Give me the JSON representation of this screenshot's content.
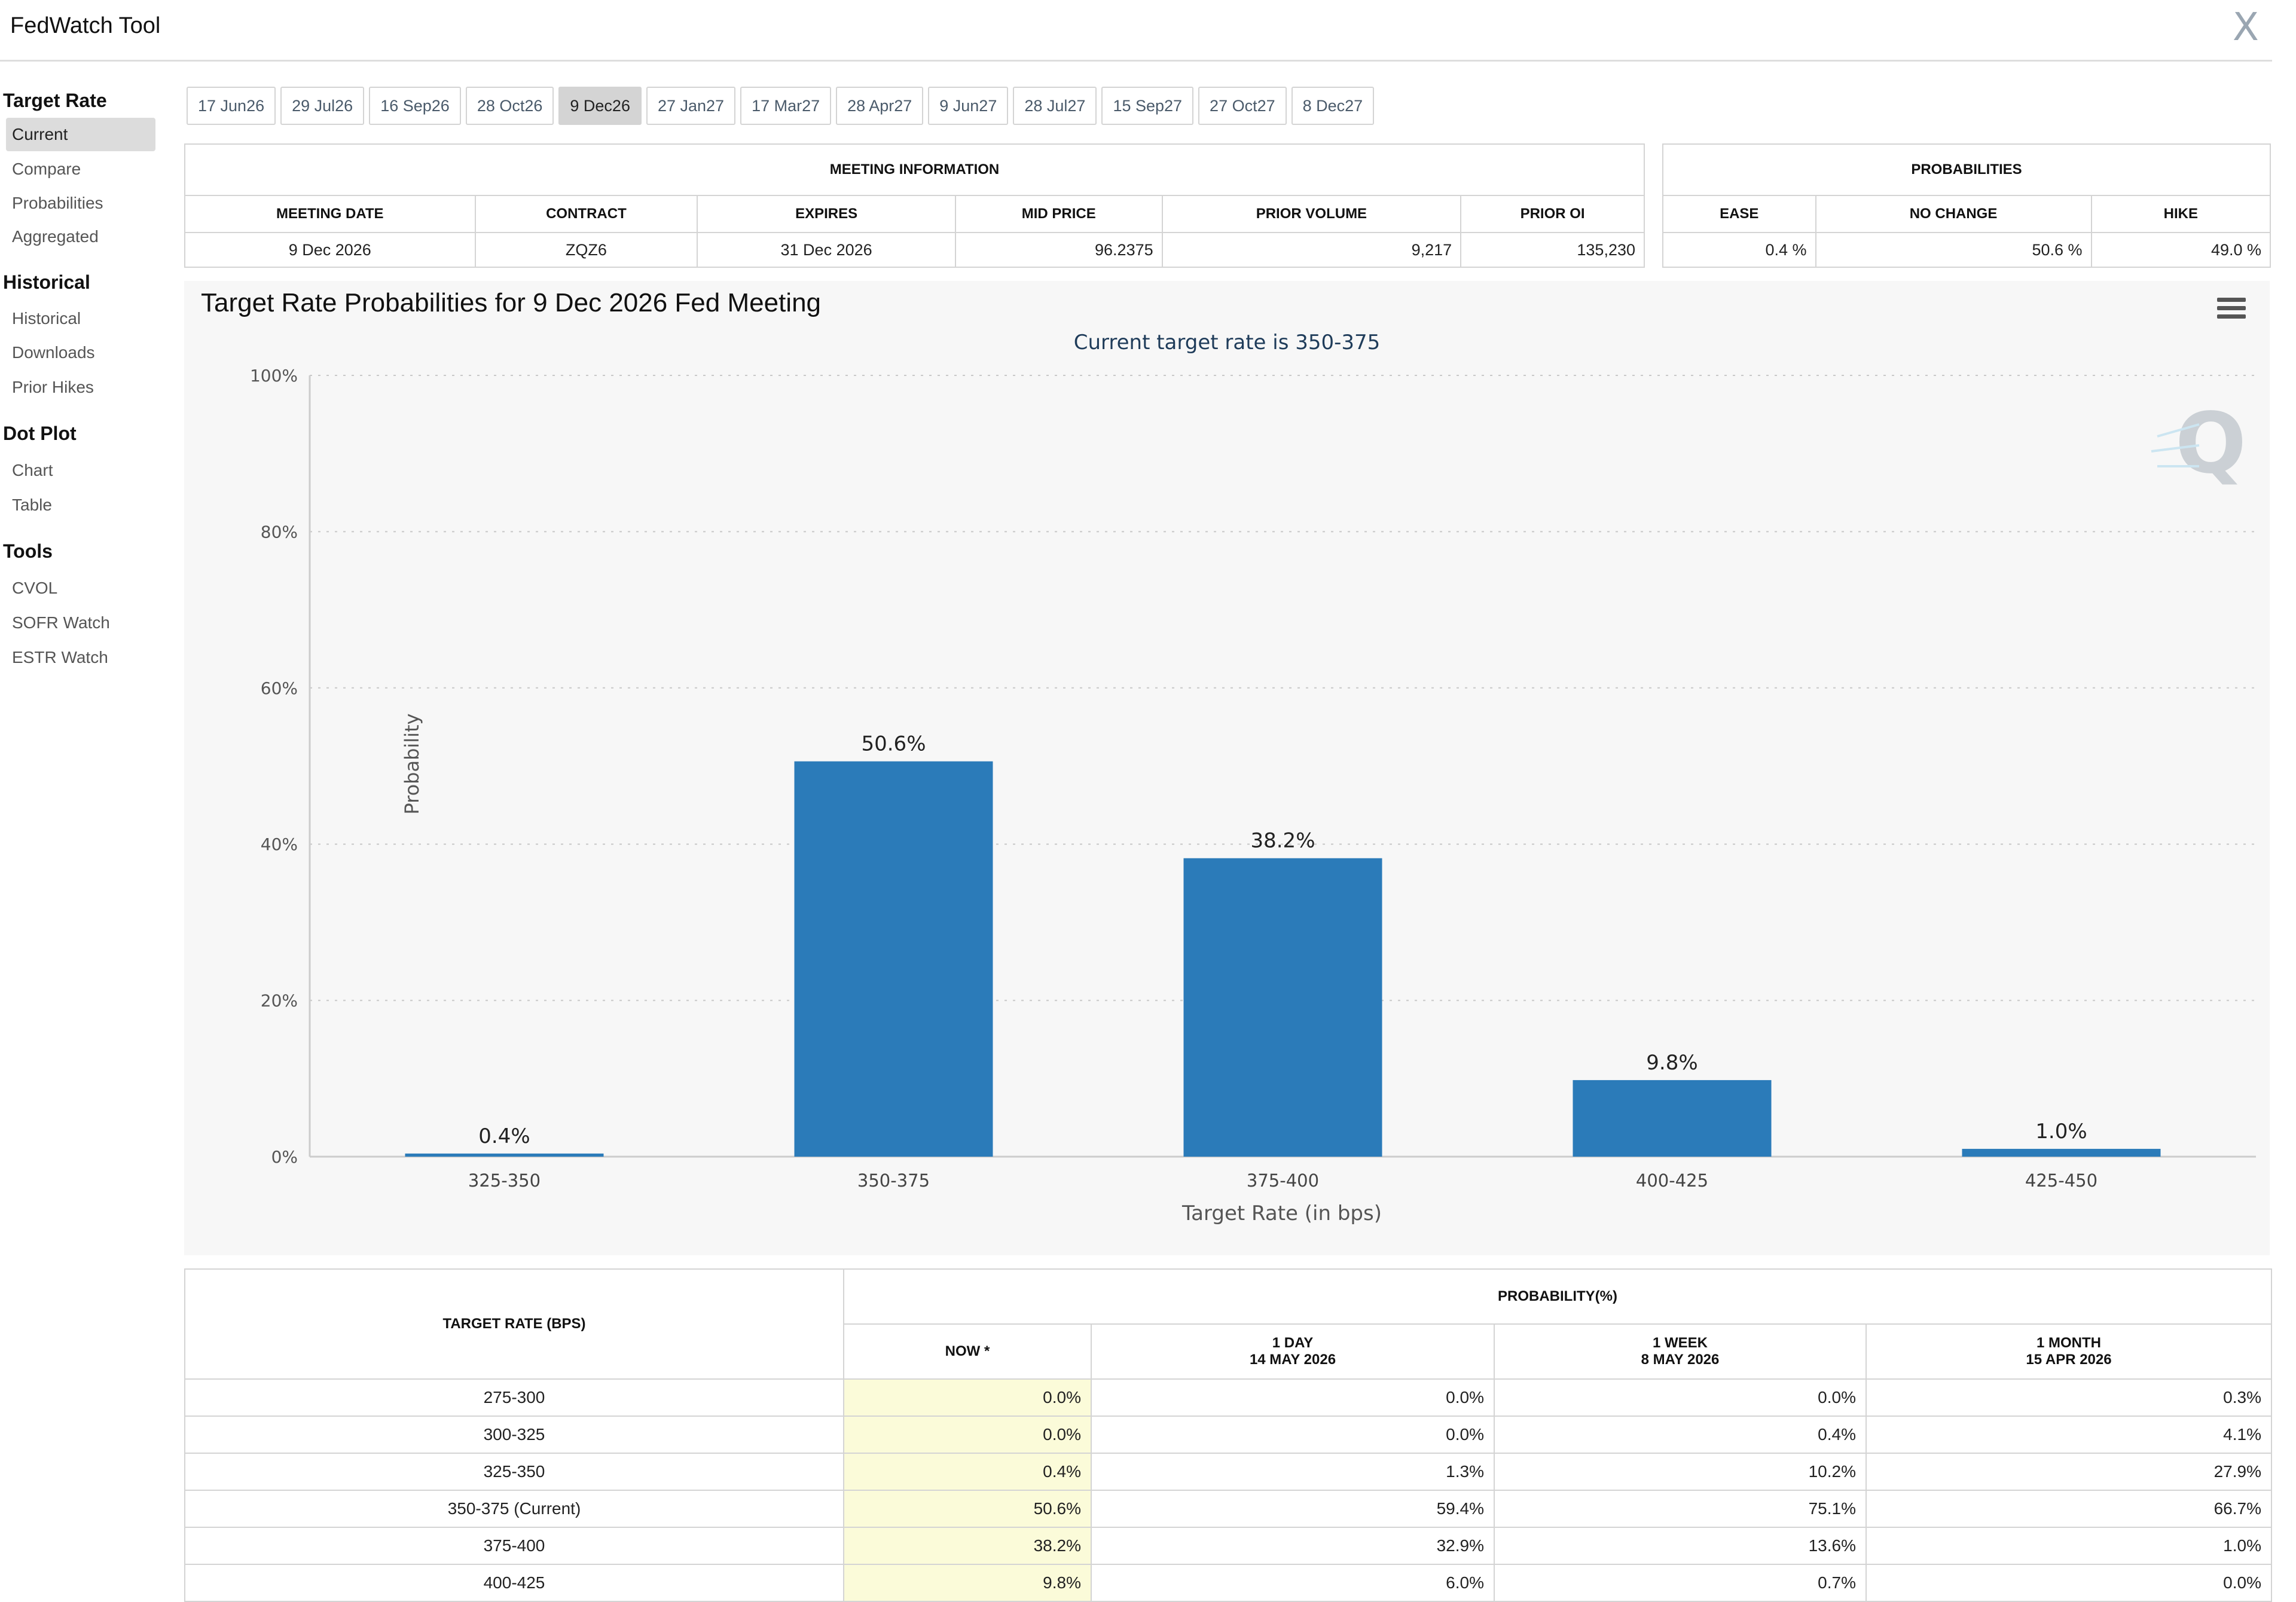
{
  "window": {
    "title": "FedWatch Tool",
    "close_label": "X"
  },
  "sidebar": {
    "groups": [
      {
        "title": "Target Rate",
        "items": [
          "Current",
          "Compare",
          "Probabilities",
          "Aggregated"
        ]
      },
      {
        "title": "Historical",
        "items": [
          "Historical",
          "Downloads",
          "Prior Hikes"
        ]
      },
      {
        "title": "Dot Plot",
        "items": [
          "Chart",
          "Table"
        ]
      },
      {
        "title": "Tools",
        "items": [
          "CVOL",
          "SOFR Watch",
          "ESTR Watch"
        ]
      }
    ],
    "active_item": "Current"
  },
  "meeting_tabs": [
    "17 Jun26",
    "29 Jul26",
    "16 Sep26",
    "28 Oct26",
    "9 Dec26",
    "27 Jan27",
    "17 Mar27",
    "28 Apr27",
    "9 Jun27",
    "28 Jul27",
    "15 Sep27",
    "27 Oct27",
    "8 Dec27"
  ],
  "selected_tab": "9 Dec26",
  "meeting_info": {
    "heading": "MEETING INFORMATION",
    "headers": [
      "MEETING DATE",
      "CONTRACT",
      "EXPIRES",
      "MID PRICE",
      "PRIOR VOLUME",
      "PRIOR OI"
    ],
    "values": [
      "9 Dec 2026",
      "ZQZ6",
      "31 Dec 2026",
      "96.2375",
      "9,217",
      "135,230"
    ]
  },
  "probabilities": {
    "heading": "PROBABILITIES",
    "headers": [
      "EASE",
      "NO CHANGE",
      "HIKE"
    ],
    "values": [
      "0.4 %",
      "50.6 %",
      "49.0 %"
    ]
  },
  "chart": {
    "title": "Target Rate Probabilities for 9 Dec 2026 Fed Meeting",
    "subtitle": "Current target rate is 350-375",
    "bar_color": "#2b7bb9"
  },
  "chart_data": {
    "type": "bar",
    "title": "Target Rate Probabilities for 9 Dec 2026 Fed Meeting",
    "subtitle": "Current target rate is 350-375",
    "categories": [
      "325-350",
      "350-375",
      "375-400",
      "400-425",
      "425-450"
    ],
    "values": [
      0.4,
      50.6,
      38.2,
      9.8,
      1.0
    ],
    "data_labels": [
      "0.4%",
      "50.6%",
      "38.2%",
      "9.8%",
      "1.0%"
    ],
    "xlabel": "Target Rate (in bps)",
    "ylabel": "Probability",
    "ylim": [
      0,
      100
    ],
    "yticks": [
      "0%",
      "20%",
      "40%",
      "60%",
      "80%",
      "100%"
    ],
    "grid": true
  },
  "prob_table": {
    "rate_header": "TARGET RATE (BPS)",
    "prob_header": "PROBABILITY(%)",
    "columns": [
      {
        "line1": "NOW *",
        "line2": ""
      },
      {
        "line1": "1 DAY",
        "line2": "14 MAY 2026"
      },
      {
        "line1": "1 WEEK",
        "line2": "8 MAY 2026"
      },
      {
        "line1": "1 MONTH",
        "line2": "15 APR 2026"
      }
    ],
    "rows": [
      [
        "275-300",
        "0.0%",
        "0.0%",
        "0.0%",
        "0.3%"
      ],
      [
        "300-325",
        "0.0%",
        "0.0%",
        "0.4%",
        "4.1%"
      ],
      [
        "325-350",
        "0.4%",
        "1.3%",
        "10.2%",
        "27.9%"
      ],
      [
        "350-375 (Current)",
        "50.6%",
        "59.4%",
        "75.1%",
        "66.7%"
      ],
      [
        "375-400",
        "38.2%",
        "32.9%",
        "13.6%",
        "1.0%"
      ],
      [
        "400-425",
        "9.8%",
        "6.0%",
        "0.7%",
        "0.0%"
      ]
    ]
  }
}
